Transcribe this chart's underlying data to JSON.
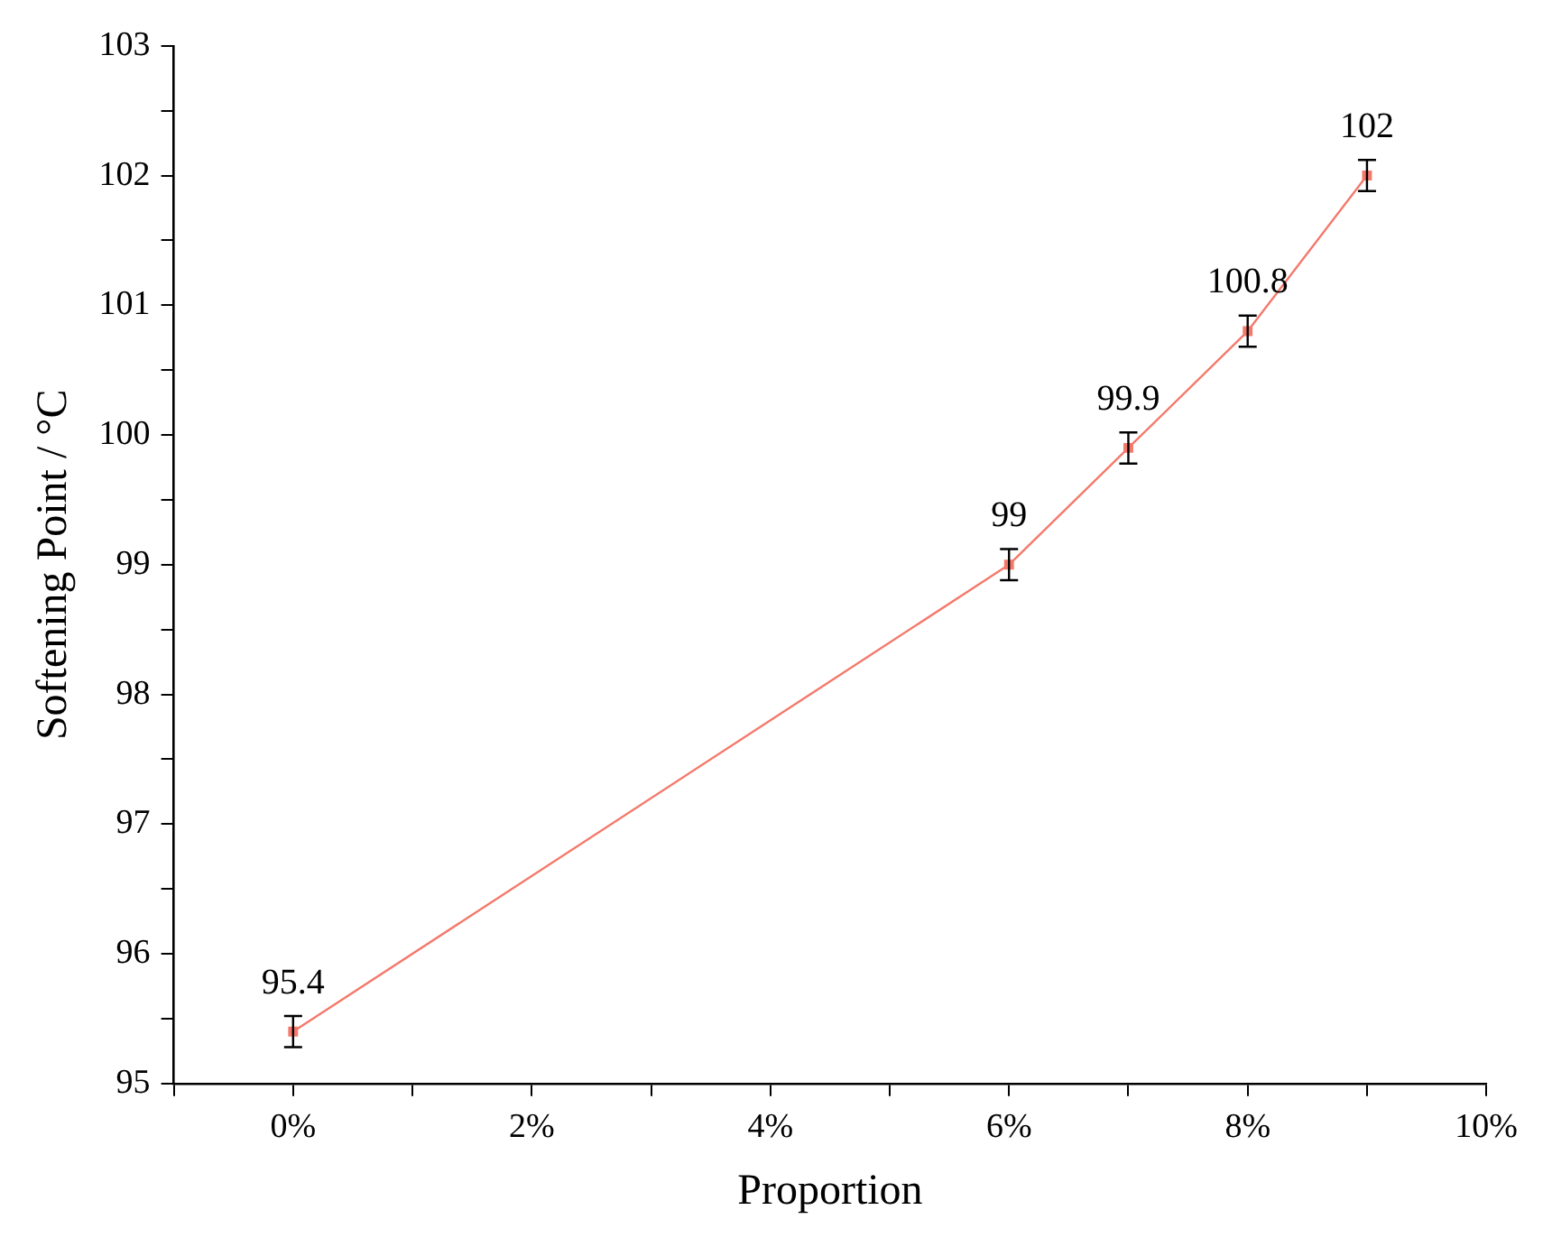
{
  "chart_data": {
    "type": "line",
    "xlabel": "Proportion",
    "ylabel": "Softening Point / °C",
    "x": [
      0,
      6,
      7,
      8,
      9
    ],
    "series": [
      {
        "color": "#f4796b",
        "values": [
          95.4,
          99,
          99.9,
          100.8,
          102
        ],
        "errors": [
          0.12,
          0.12,
          0.12,
          0.12,
          0.12
        ]
      }
    ],
    "data_labels": true,
    "marker": "square",
    "line_style": "solid",
    "grid": false,
    "legend": false,
    "xlim": [
      -1,
      10
    ],
    "xticks": [
      {
        "value": -1,
        "label": null
      },
      {
        "value": 0,
        "label": "0%"
      },
      {
        "value": 1,
        "label": null
      },
      {
        "value": 2,
        "label": "2%"
      },
      {
        "value": 3,
        "label": null
      },
      {
        "value": 4,
        "label": "4%"
      },
      {
        "value": 5,
        "label": null
      },
      {
        "value": 6,
        "label": "6%"
      },
      {
        "value": 7,
        "label": null
      },
      {
        "value": 8,
        "label": "8%"
      },
      {
        "value": 9,
        "label": null
      },
      {
        "value": 10,
        "label": "10%"
      }
    ],
    "ylim": [
      95,
      103
    ],
    "yticks": [
      95,
      {
        "value": 95.5,
        "label": null
      },
      96,
      {
        "value": 96.5,
        "label": null
      },
      97,
      {
        "value": 97.5,
        "label": null
      },
      98,
      {
        "value": 98.5,
        "label": null
      },
      99,
      {
        "value": 99.5,
        "label": null
      },
      100,
      {
        "value": 100.5,
        "label": null
      },
      101,
      {
        "value": 101.5,
        "label": null
      },
      102,
      {
        "value": 102.5,
        "label": null
      },
      103
    ]
  }
}
